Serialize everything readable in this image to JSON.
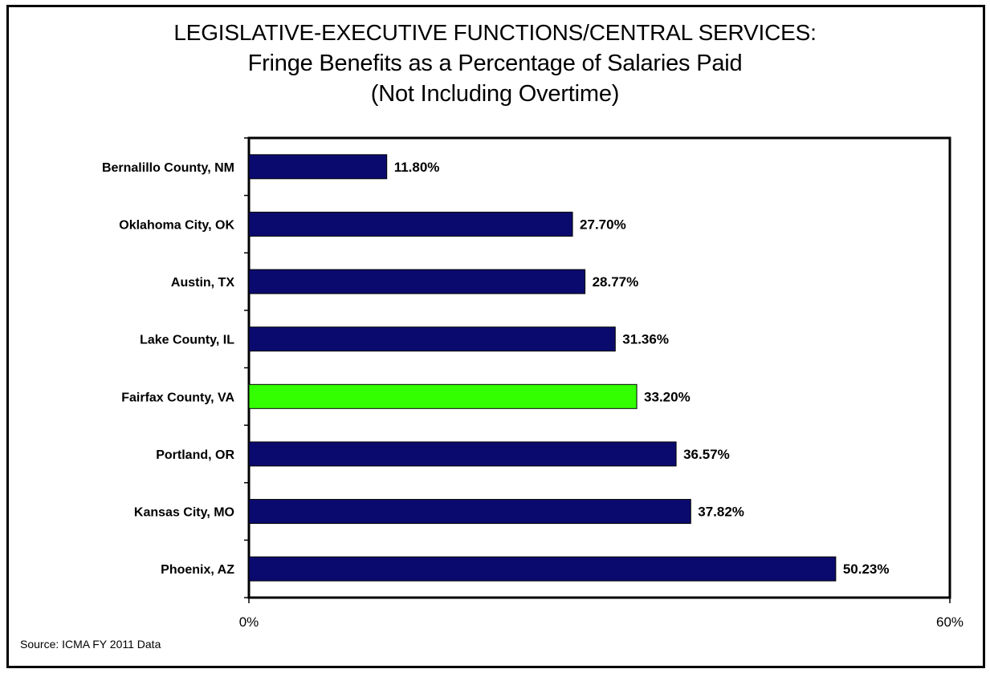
{
  "chart_data": {
    "type": "bar",
    "orientation": "horizontal",
    "title": "LEGISLATIVE-EXECUTIVE FUNCTIONS/CENTRAL SERVICES:",
    "subtitle": "Fringe Benefits as a Percentage of Salaries Paid",
    "subtitle2": "(Not Including Overtime)",
    "categories": [
      "Bernalillo County, NM",
      "Oklahoma City, OK",
      "Austin, TX",
      "Lake County, IL",
      "Fairfax County, VA",
      "Portland, OR",
      "Kansas City, MO",
      "Phoenix, AZ"
    ],
    "values": [
      11.8,
      27.7,
      28.77,
      31.36,
      33.2,
      36.57,
      37.82,
      50.23
    ],
    "data_labels": [
      "11.80%",
      "27.70%",
      "28.77%",
      "31.36%",
      "33.20%",
      "36.57%",
      "37.82%",
      "50.23%"
    ],
    "xlim": [
      0,
      60
    ],
    "x_tick_labels": [
      "0%",
      "60%"
    ],
    "xlabel": "",
    "ylabel": "",
    "grid": false,
    "legend": "none",
    "colors": {
      "default_bar": "#0A0A6E",
      "highlight_bar": "#33FF00",
      "highlight_category": "Fairfax County, VA",
      "bar_outline": "#000000"
    },
    "source": "Source: ICMA FY 2011 Data"
  }
}
